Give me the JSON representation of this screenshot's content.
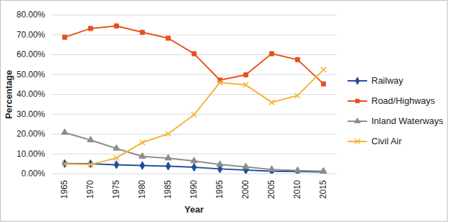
{
  "chart_data": {
    "type": "line",
    "x_label": "Year",
    "y_label": "Percentage",
    "categories": [
      "1965",
      "1970",
      "1975",
      "1980",
      "1985",
      "1990",
      "1995",
      "2000",
      "2005",
      "2010",
      "2015"
    ],
    "series": [
      {
        "name": "Railway",
        "color": "#1f4e9c",
        "marker": "diamond",
        "values": [
          5.2,
          5.1,
          4.6,
          4.2,
          3.9,
          3.3,
          2.5,
          1.9,
          1.3,
          1.2,
          1.0
        ]
      },
      {
        "name": "Road/Highways",
        "color": "#e8501a",
        "marker": "square",
        "values": [
          68.8,
          73.2,
          74.5,
          71.3,
          68.3,
          60.5,
          47.2,
          49.9,
          60.5,
          57.5,
          45.3
        ]
      },
      {
        "name": "Inland Waterways",
        "color": "#8c8c8c",
        "marker": "triangle",
        "values": [
          20.8,
          17.0,
          12.8,
          8.8,
          7.9,
          6.5,
          4.7,
          3.5,
          2.2,
          1.7,
          1.3
        ]
      },
      {
        "name": "Civil Air",
        "color": "#f5b335",
        "marker": "x",
        "values": [
          5.0,
          4.7,
          8.0,
          15.8,
          20.2,
          29.8,
          46.0,
          44.8,
          36.0,
          39.5,
          52.5
        ]
      }
    ],
    "ylim": [
      0,
      80
    ],
    "yticks": [
      {
        "value": 0,
        "label": "0.00%"
      },
      {
        "value": 10,
        "label": "10.00%"
      },
      {
        "value": 20,
        "label": "20.00%"
      },
      {
        "value": 30,
        "label": "30.00%"
      },
      {
        "value": 40,
        "label": "40.00%"
      },
      {
        "value": 50,
        "label": "50.00%"
      },
      {
        "value": 60,
        "label": "60.00%"
      },
      {
        "value": 70,
        "label": "70.00%"
      },
      {
        "value": 80,
        "label": "80.00%"
      }
    ],
    "grid": true,
    "legend": "right"
  }
}
